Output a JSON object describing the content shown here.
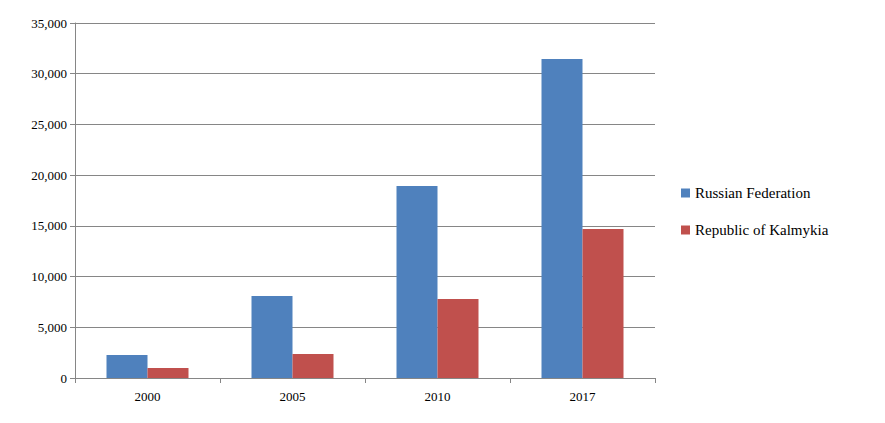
{
  "chart_data": {
    "type": "bar",
    "categories": [
      "2000",
      "2005",
      "2010",
      "2017"
    ],
    "series": [
      {
        "name": "Russian Federation",
        "color": "#4f81bd",
        "values": [
          2270,
          8090,
          18930,
          31450
        ]
      },
      {
        "name": "Republic of Kalmykia",
        "color": "#c0504d",
        "values": [
          990,
          2370,
          7790,
          14690
        ]
      }
    ],
    "ylim": [
      0,
      35000
    ],
    "yticks": [
      0,
      5000,
      10000,
      15000,
      20000,
      25000,
      30000,
      35000
    ],
    "grid": true,
    "legend": "right"
  }
}
